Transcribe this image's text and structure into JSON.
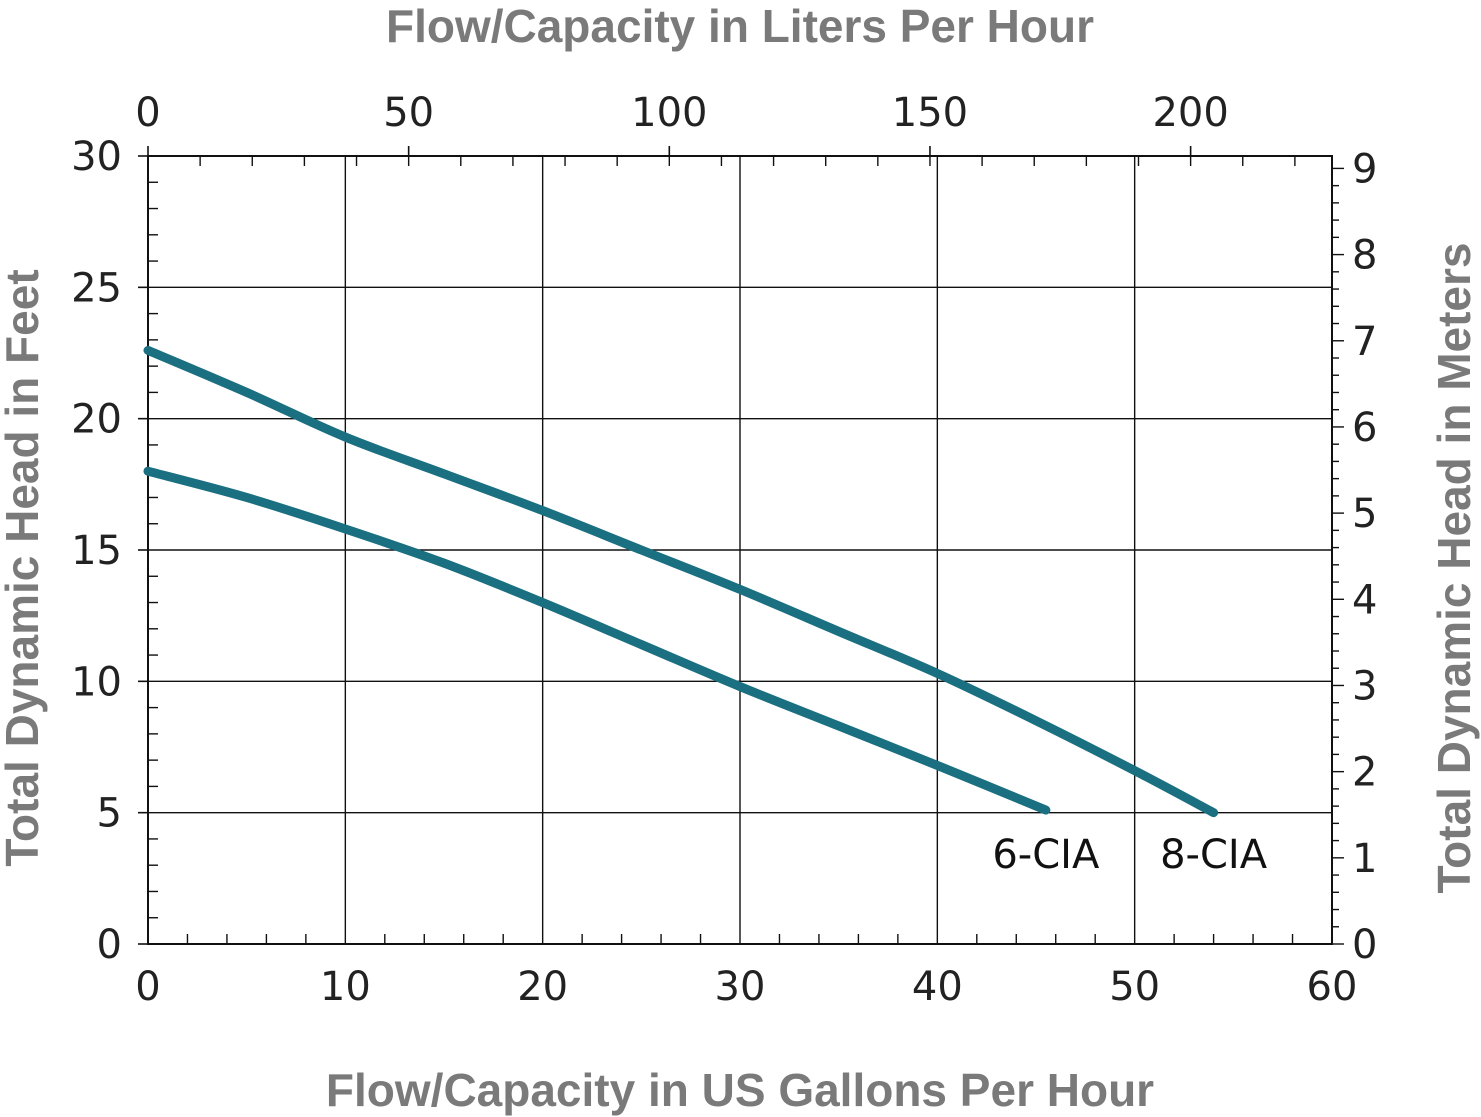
{
  "chart_data": {
    "type": "line",
    "title": "",
    "xlabel": "Flow/Capacity in US Gallons Per Hour",
    "x2label": "Flow/Capacity in Liters Per Hour",
    "ylabel": "Total Dynamic Head in Feet",
    "y2label": "Total Dynamic Head in Meters",
    "xlim": [
      0,
      60
    ],
    "ylim": [
      0,
      30
    ],
    "x2lim": [
      0,
      227.12
    ],
    "y2lim": [
      0,
      9.144
    ],
    "x_ticks": [
      "0",
      "10",
      "20",
      "30",
      "40",
      "50",
      "60"
    ],
    "y_ticks": [
      "0",
      "5",
      "10",
      "15",
      "20",
      "25",
      "30"
    ],
    "x2_ticks": [
      "0",
      "50",
      "100",
      "150",
      "200"
    ],
    "y2_ticks": [
      "0",
      "1",
      "2",
      "3",
      "4",
      "5",
      "6",
      "7",
      "8",
      "9"
    ],
    "grid": true,
    "series": [
      {
        "name": "8-CIA",
        "x": [
          0,
          5,
          10,
          15,
          20,
          25,
          30,
          35,
          40,
          45,
          50,
          54
        ],
        "y": [
          22.6,
          21.0,
          19.3,
          17.9,
          16.5,
          15.0,
          13.5,
          11.9,
          10.3,
          8.5,
          6.6,
          5.0
        ]
      },
      {
        "name": "6-CIA",
        "x": [
          0,
          5,
          10,
          15,
          20,
          25,
          30,
          35,
          40,
          45.5
        ],
        "y": [
          18.0,
          17.0,
          15.8,
          14.5,
          13.0,
          11.4,
          9.8,
          8.3,
          6.8,
          5.1
        ]
      }
    ],
    "color": "#1a6f80"
  }
}
